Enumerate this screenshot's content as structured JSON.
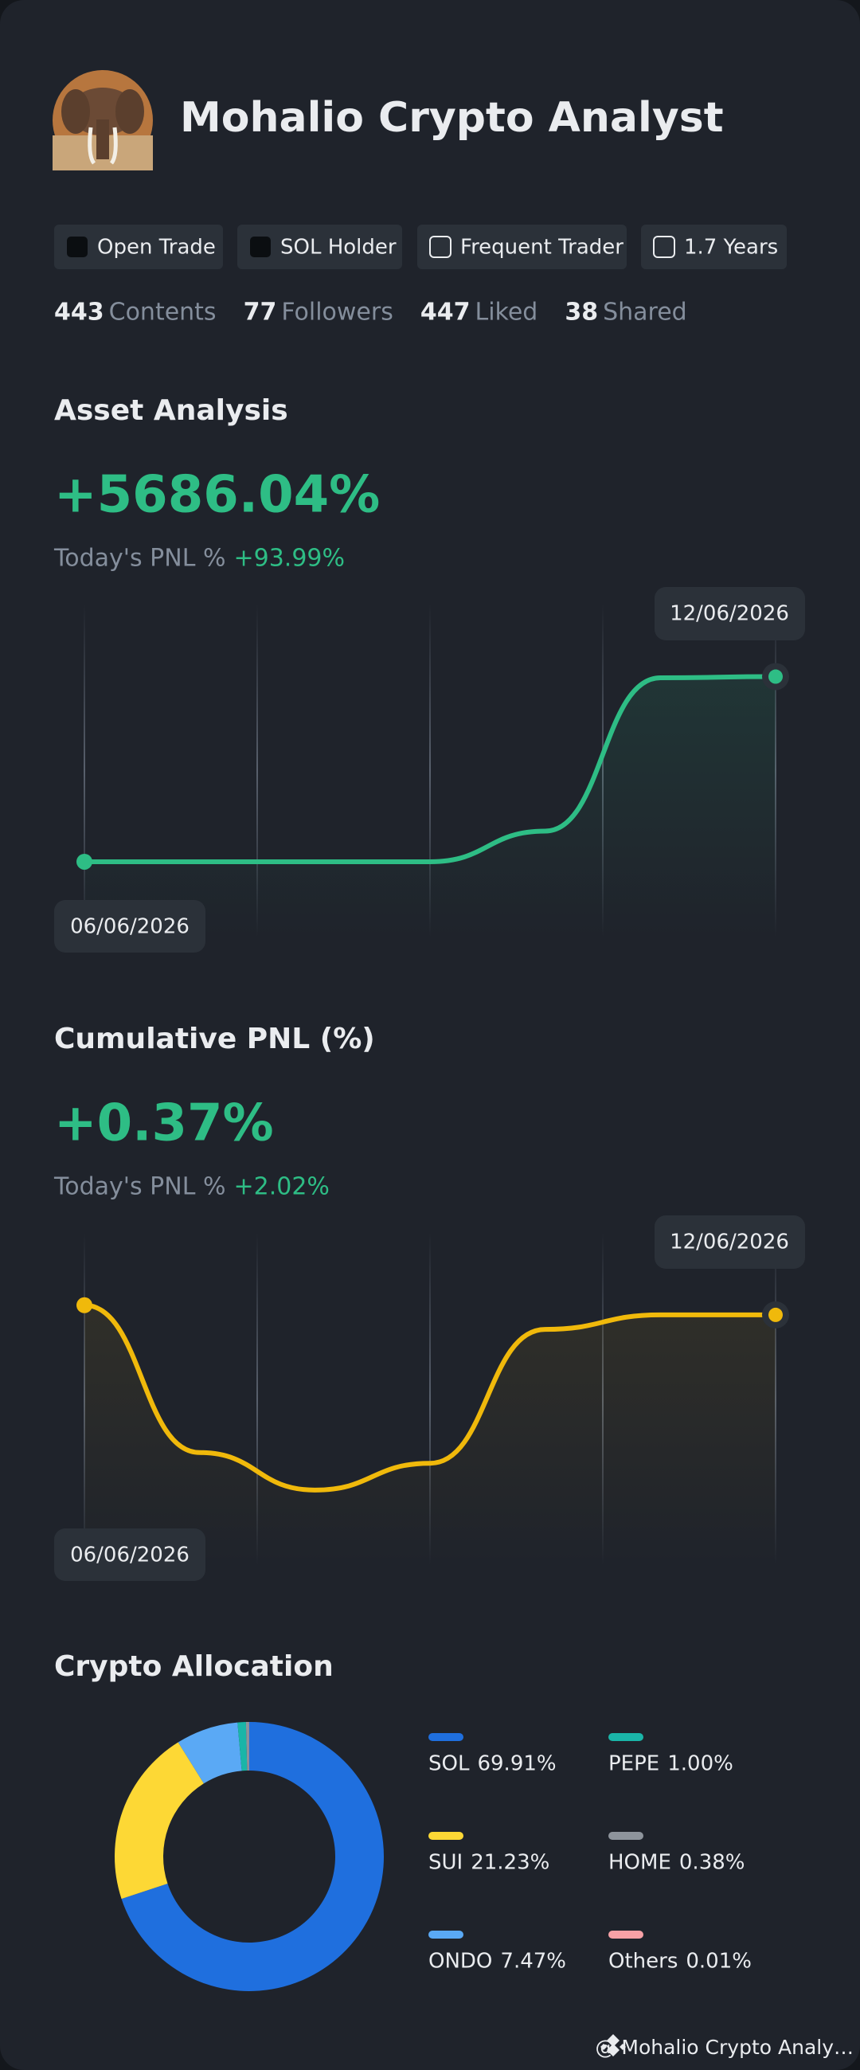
{
  "profile": {
    "name": "Mohalio Crypto Analyst"
  },
  "tags": [
    "Open Trade",
    "SOL Holder",
    "Frequent Trader",
    "1.7 Years"
  ],
  "stats": [
    {
      "value": 443,
      "label": "Contents"
    },
    {
      "value": 77,
      "label": "Followers"
    },
    {
      "value": 447,
      "label": "Liked"
    },
    {
      "value": 38,
      "label": "Shared"
    }
  ],
  "chart_data": [
    {
      "type": "line",
      "title": "Asset Analysis",
      "headline": "+5686.04%",
      "subtitle": "Today's PNL %",
      "today": "+93.99%",
      "categories": [
        "06/06/2026",
        null,
        null,
        null,
        null,
        null,
        "12/06/2026"
      ],
      "series": [
        {
          "color": "#2ebd85",
          "values": [
            0,
            0,
            0,
            0,
            941,
            5650,
            5686.04
          ]
        }
      ],
      "ylim": [
        -2300,
        7900
      ]
    },
    {
      "type": "line",
      "title": "Cumulative PNL (%)",
      "headline": "+0.37%",
      "subtitle": "Today's PNL %",
      "today": "+2.02%",
      "categories": [
        "06/06/2026",
        null,
        null,
        null,
        null,
        null,
        "12/06/2026"
      ],
      "series": [
        {
          "color": "#f0b90b",
          "values": [
            0.55,
            -2.2,
            -2.9,
            -2.4,
            0.1,
            0.37,
            0.37
          ]
        }
      ],
      "ylim": [
        -4.3,
        1.9
      ]
    },
    {
      "type": "pie",
      "title": "Crypto Allocation",
      "categories": [
        "SOL",
        "SUI",
        "ONDO",
        "PEPE",
        "HOME",
        "Others"
      ],
      "values": [
        69.91,
        21.23,
        7.47,
        1.0,
        0.38,
        0.01
      ],
      "value_labels": [
        "69.91%",
        "21.23%",
        "7.47%",
        "1.00%",
        "0.38%",
        "0.01%"
      ],
      "colors": [
        "#1f6fde",
        "#fdd835",
        "#5aa9f5",
        "#1ab5a8",
        "#8e949c",
        "#f7a1a6"
      ]
    }
  ],
  "footer": "@ Mohalio Crypto Analy…"
}
